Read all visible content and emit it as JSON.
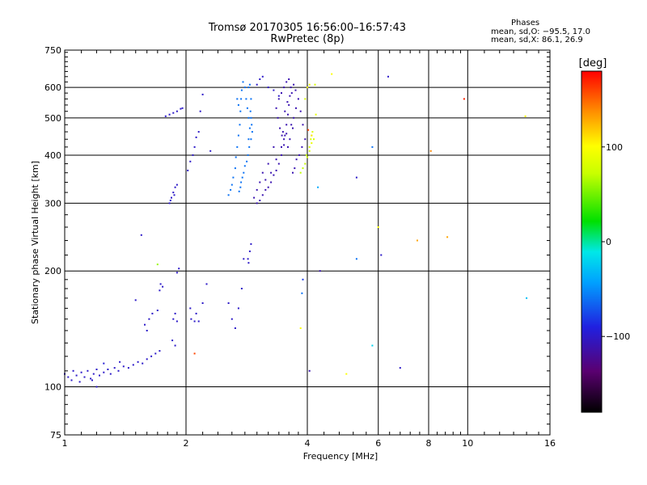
{
  "header": {
    "title_line1": "Tromsø 20170305 16:56:00–16:57:43",
    "title_line2": "RwPretec (8p)",
    "stats_title": "Phases",
    "stats_line1": "mean, sd,O: −95.5, 17.0",
    "stats_line2": "mean, sd,X: 86.1, 26.9"
  },
  "colorbar": {
    "unit": "[deg]",
    "tick_labels": [
      "100",
      "0",
      "−100"
    ],
    "tick_values": [
      100,
      0,
      -100
    ],
    "range": [
      -180,
      180
    ]
  },
  "chart_data": {
    "type": "scatter",
    "xlabel": "Frequency [MHz]",
    "ylabel": "Stationary phase Virtual Height [km]",
    "xscale": "log",
    "yscale": "log",
    "xlim": [
      1,
      16
    ],
    "ylim": [
      75,
      750
    ],
    "grid": true,
    "x_ticks": [
      1,
      2,
      4,
      6,
      8,
      10,
      16
    ],
    "x_tick_labels": [
      "1",
      "2",
      "4",
      "6",
      "8",
      "10",
      "16"
    ],
    "y_ticks": [
      75,
      100,
      200,
      300,
      400,
      500,
      600,
      750
    ],
    "y_tick_labels": [
      "75",
      "100",
      "200",
      "300",
      "400",
      "500",
      "600",
      "750"
    ],
    "color_by": "phase [deg]",
    "points": [
      [
        1.0,
        108,
        -100
      ],
      [
        1.02,
        106,
        -100
      ],
      [
        1.04,
        104,
        -100
      ],
      [
        1.05,
        110,
        -100
      ],
      [
        1.07,
        107,
        -100
      ],
      [
        1.09,
        103,
        -100
      ],
      [
        1.1,
        109,
        -100
      ],
      [
        1.12,
        106,
        -100
      ],
      [
        1.14,
        110,
        -100
      ],
      [
        1.16,
        105,
        -100
      ],
      [
        1.18,
        108,
        -100
      ],
      [
        1.2,
        111,
        -100
      ],
      [
        1.22,
        107,
        -100
      ],
      [
        1.25,
        109,
        -100
      ],
      [
        1.28,
        111,
        -100
      ],
      [
        1.3,
        108,
        -100
      ],
      [
        1.33,
        112,
        -100
      ],
      [
        1.36,
        110,
        -100
      ],
      [
        1.4,
        113,
        -100
      ],
      [
        1.44,
        112,
        -100
      ],
      [
        1.48,
        114,
        -100
      ],
      [
        1.52,
        116,
        -100
      ],
      [
        1.56,
        115,
        -100
      ],
      [
        1.6,
        118,
        -100
      ],
      [
        1.64,
        120,
        -100
      ],
      [
        1.68,
        122,
        -100
      ],
      [
        1.72,
        124,
        -100
      ],
      [
        1.25,
        115,
        -95
      ],
      [
        1.37,
        116,
        -100
      ],
      [
        1.2,
        100,
        -100
      ],
      [
        1.17,
        104,
        -100
      ],
      [
        1.58,
        145,
        -100
      ],
      [
        1.62,
        150,
        -100
      ],
      [
        1.65,
        155,
        -100
      ],
      [
        1.7,
        158,
        -100
      ],
      [
        1.6,
        140,
        -100
      ],
      [
        1.72,
        178,
        -100
      ],
      [
        1.75,
        182,
        -100
      ],
      [
        1.73,
        185,
        -100
      ],
      [
        1.86,
        150,
        -100
      ],
      [
        1.88,
        155,
        -100
      ],
      [
        1.9,
        148,
        -100
      ],
      [
        1.85,
        132,
        -100
      ],
      [
        1.88,
        128,
        -100
      ],
      [
        1.9,
        198,
        -100
      ],
      [
        1.92,
        203,
        -100
      ],
      [
        1.5,
        168,
        -100
      ],
      [
        1.55,
        248,
        -100
      ],
      [
        1.7,
        208,
        60
      ],
      [
        1.82,
        300,
        -100
      ],
      [
        1.84,
        310,
        -100
      ],
      [
        1.86,
        320,
        -100
      ],
      [
        1.88,
        330,
        -100
      ],
      [
        1.9,
        335,
        -100
      ],
      [
        1.87,
        315,
        -100
      ],
      [
        1.83,
        305,
        -100
      ],
      [
        1.78,
        505,
        -100
      ],
      [
        1.82,
        510,
        -100
      ],
      [
        1.86,
        515,
        -100
      ],
      [
        1.9,
        520,
        -100
      ],
      [
        1.94,
        528,
        -100
      ],
      [
        1.96,
        530,
        -100
      ],
      [
        2.02,
        365,
        -100
      ],
      [
        2.05,
        385,
        -100
      ],
      [
        2.08,
        400,
        -100
      ],
      [
        2.1,
        420,
        -100
      ],
      [
        2.12,
        445,
        -100
      ],
      [
        2.15,
        460,
        -100
      ],
      [
        2.17,
        520,
        -100
      ],
      [
        2.2,
        575,
        -100
      ],
      [
        2.06,
        150,
        -100
      ],
      [
        2.1,
        148,
        -100
      ],
      [
        2.12,
        155,
        -100
      ],
      [
        2.05,
        160,
        -100
      ],
      [
        2.15,
        148,
        -100
      ],
      [
        2.1,
        122,
        160
      ],
      [
        2.2,
        165,
        -100
      ],
      [
        2.25,
        185,
        -100
      ],
      [
        2.3,
        410,
        -100
      ],
      [
        2.55,
        315,
        -60
      ],
      [
        2.58,
        325,
        -60
      ],
      [
        2.6,
        335,
        -60
      ],
      [
        2.62,
        350,
        -60
      ],
      [
        2.65,
        370,
        -60
      ],
      [
        2.66,
        395,
        -60
      ],
      [
        2.68,
        420,
        -60
      ],
      [
        2.7,
        450,
        -60
      ],
      [
        2.72,
        480,
        -60
      ],
      [
        2.73,
        520,
        -60
      ],
      [
        2.74,
        560,
        -60
      ],
      [
        2.75,
        590,
        -60
      ],
      [
        2.77,
        620,
        -60
      ],
      [
        2.8,
        600,
        -60
      ],
      [
        2.82,
        560,
        -60
      ],
      [
        2.84,
        530,
        -60
      ],
      [
        2.86,
        500,
        -60
      ],
      [
        2.88,
        470,
        -60
      ],
      [
        2.86,
        440,
        -60
      ],
      [
        2.87,
        420,
        -60
      ],
      [
        2.85,
        400,
        -60
      ],
      [
        2.83,
        385,
        -60
      ],
      [
        2.8,
        375,
        -60
      ],
      [
        2.78,
        360,
        -60
      ],
      [
        2.76,
        350,
        -60
      ],
      [
        2.74,
        340,
        -60
      ],
      [
        2.73,
        330,
        -60
      ],
      [
        2.71,
        322,
        -60
      ],
      [
        2.9,
        560,
        -60
      ],
      [
        2.88,
        610,
        -60
      ],
      [
        2.86,
        600,
        -60
      ],
      [
        2.89,
        520,
        -60
      ],
      [
        2.9,
        500,
        -60
      ],
      [
        2.91,
        480,
        -60
      ],
      [
        2.92,
        460,
        -60
      ],
      [
        2.9,
        440,
        -60
      ],
      [
        2.7,
        540,
        -60
      ],
      [
        2.68,
        560,
        -60
      ],
      [
        2.85,
        215,
        -100
      ],
      [
        2.88,
        225,
        -100
      ],
      [
        2.9,
        235,
        -100
      ],
      [
        2.86,
        210,
        -100
      ],
      [
        2.78,
        215,
        -100
      ],
      [
        2.75,
        180,
        -100
      ],
      [
        2.7,
        160,
        -100
      ],
      [
        2.65,
        142,
        -100
      ],
      [
        2.6,
        150,
        -100
      ],
      [
        2.55,
        165,
        -100
      ],
      [
        2.95,
        310,
        -110
      ],
      [
        3.0,
        300,
        -110
      ],
      [
        3.05,
        305,
        -110
      ],
      [
        3.1,
        315,
        -110
      ],
      [
        3.15,
        325,
        -110
      ],
      [
        3.2,
        330,
        -110
      ],
      [
        3.25,
        340,
        -110
      ],
      [
        3.3,
        355,
        -110
      ],
      [
        3.35,
        365,
        -110
      ],
      [
        3.4,
        380,
        -110
      ],
      [
        3.45,
        400,
        -110
      ],
      [
        3.5,
        425,
        -110
      ],
      [
        3.52,
        450,
        -110
      ],
      [
        3.55,
        480,
        -110
      ],
      [
        3.58,
        510,
        -110
      ],
      [
        3.6,
        540,
        -110
      ],
      [
        3.62,
        570,
        -110
      ],
      [
        3.64,
        600,
        -110
      ],
      [
        3.6,
        630,
        -110
      ],
      [
        3.55,
        620,
        -110
      ],
      [
        3.5,
        600,
        -110
      ],
      [
        3.45,
        580,
        -110
      ],
      [
        3.4,
        560,
        -110
      ],
      [
        3.35,
        530,
        -110
      ],
      [
        3.38,
        500,
        -110
      ],
      [
        3.42,
        470,
        -110
      ],
      [
        3.46,
        450,
        -110
      ],
      [
        3.5,
        440,
        -110
      ],
      [
        3.3,
        420,
        -110
      ],
      [
        3.2,
        380,
        -110
      ],
      [
        3.1,
        360,
        -110
      ],
      [
        3.05,
        340,
        -110
      ],
      [
        3.0,
        325,
        -110
      ],
      [
        3.15,
        345,
        -110
      ],
      [
        3.25,
        360,
        -110
      ],
      [
        3.35,
        390,
        -110
      ],
      [
        3.45,
        420,
        -110
      ],
      [
        3.55,
        455,
        -110
      ],
      [
        3.65,
        480,
        -110
      ],
      [
        3.7,
        500,
        -110
      ],
      [
        3.75,
        530,
        -110
      ],
      [
        3.68,
        470,
        -110
      ],
      [
        3.62,
        440,
        -110
      ],
      [
        3.58,
        420,
        -110
      ],
      [
        3.48,
        460,
        -110
      ],
      [
        3.52,
        520,
        -110
      ],
      [
        3.57,
        550,
        -110
      ],
      [
        3.66,
        580,
        -110
      ],
      [
        3.7,
        610,
        -110
      ],
      [
        3.74,
        590,
        -110
      ],
      [
        3.8,
        560,
        -110
      ],
      [
        3.85,
        520,
        -110
      ],
      [
        3.9,
        480,
        -110
      ],
      [
        3.95,
        440,
        -110
      ],
      [
        3.88,
        420,
        -110
      ],
      [
        3.82,
        400,
        -110
      ],
      [
        3.76,
        390,
        -110
      ],
      [
        3.72,
        370,
        -110
      ],
      [
        3.68,
        360,
        -110
      ],
      [
        3.0,
        610,
        -100
      ],
      [
        3.05,
        630,
        -100
      ],
      [
        3.1,
        640,
        -100
      ],
      [
        3.2,
        600,
        -100
      ],
      [
        3.3,
        590,
        -100
      ],
      [
        3.4,
        570,
        -100
      ],
      [
        3.9,
        370,
        70
      ],
      [
        3.95,
        380,
        70
      ],
      [
        4.0,
        395,
        80
      ],
      [
        4.05,
        420,
        80
      ],
      [
        4.08,
        440,
        80
      ],
      [
        4.1,
        450,
        90
      ],
      [
        4.12,
        460,
        80
      ],
      [
        4.15,
        440,
        80
      ],
      [
        4.1,
        430,
        90
      ],
      [
        4.05,
        410,
        80
      ],
      [
        3.98,
        400,
        70
      ],
      [
        3.85,
        360,
        70
      ],
      [
        3.95,
        560,
        80
      ],
      [
        4.0,
        600,
        100
      ],
      [
        4.05,
        610,
        90
      ],
      [
        4.1,
        450,
        110
      ],
      [
        4.02,
        465,
        160
      ],
      [
        4.2,
        510,
        90
      ],
      [
        4.18,
        610,
        80
      ],
      [
        4.6,
        650,
        100
      ],
      [
        4.25,
        330,
        -40
      ],
      [
        4.3,
        200,
        -110
      ],
      [
        4.05,
        110,
        -110
      ],
      [
        3.9,
        190,
        -80
      ],
      [
        3.85,
        142,
        100
      ],
      [
        3.88,
        175,
        -60
      ],
      [
        5.3,
        350,
        -100
      ],
      [
        5.8,
        420,
        -60
      ],
      [
        6.0,
        260,
        100
      ],
      [
        6.1,
        220,
        -100
      ],
      [
        5.3,
        215,
        -60
      ],
      [
        5.8,
        128,
        -20
      ],
      [
        6.35,
        640,
        -100
      ],
      [
        6.8,
        112,
        -100
      ],
      [
        7.5,
        240,
        130
      ],
      [
        8.1,
        410,
        140
      ],
      [
        8.9,
        245,
        130
      ],
      [
        9.8,
        560,
        170
      ],
      [
        13.9,
        505,
        100
      ],
      [
        14.0,
        170,
        -30
      ],
      [
        5.0,
        108,
        100
      ]
    ]
  }
}
